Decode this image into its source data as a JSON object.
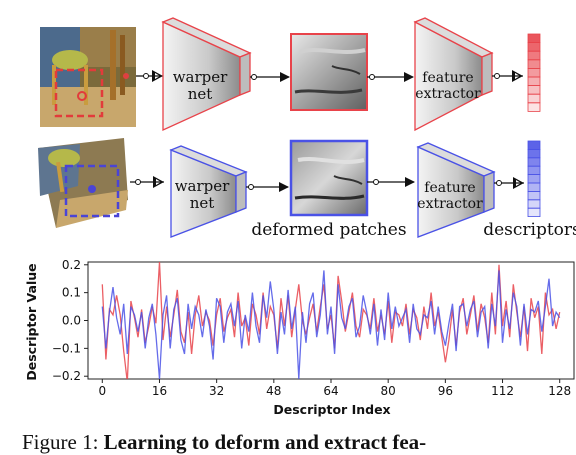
{
  "pipeline": {
    "warper_label_line1": "warper",
    "warper_label_line2": "net",
    "extractor_label_line1": "feature",
    "extractor_label_line2": "extractor",
    "deformed_patches_label": "deformed patches",
    "descriptors_label": "descriptors",
    "colors": {
      "red": "#e8434a",
      "blue": "#4a52e6"
    }
  },
  "chart_data": {
    "type": "line",
    "xlabel": "Descriptor Index",
    "ylabel": "Descriptor Value",
    "xlim": [
      -4,
      132
    ],
    "ylim": [
      -0.21,
      0.21
    ],
    "xticks": [
      0,
      16,
      32,
      48,
      64,
      80,
      96,
      112,
      128
    ],
    "yticks": [
      -0.2,
      -0.1,
      0.0,
      0.1,
      0.2
    ],
    "ytick_labels": [
      "−0.2",
      "−0.1",
      "0.0",
      "0.1",
      "0.2"
    ],
    "series": [
      {
        "color": "#e8434a",
        "values": [
          0.13,
          -0.14,
          0.04,
          0.02,
          0.09,
          0.02,
          -0.11,
          -0.22,
          0.07,
          0.01,
          -0.06,
          0.04,
          -0.08,
          -0.02,
          0.05,
          -0.01,
          0.21,
          -0.07,
          0.05,
          -0.06,
          0.02,
          0.11,
          -0.04,
          -0.08,
          0.03,
          -0.12,
          0.02,
          0.09,
          -0.02,
          0.03,
          0.0,
          -0.09,
          0.02,
          0.08,
          -0.04,
          0.01,
          0.04,
          -0.06,
          0.1,
          -0.02,
          0.01,
          -0.09,
          0.06,
          0.02,
          -0.05,
          0.1,
          -0.03,
          0.05,
          0.02,
          -0.1,
          0.08,
          -0.02,
          0.09,
          -0.06,
          0.04,
          0.13,
          0.0,
          -0.05,
          0.01,
          0.06,
          -0.04,
          0.05,
          0.13,
          -0.03,
          0.02,
          -0.1,
          0.16,
          0.07,
          -0.04,
          0.03,
          0.1,
          -0.02,
          -0.06,
          0.04,
          0.02,
          -0.03,
          0.08,
          -0.04,
          0.02,
          -0.05,
          0.07,
          -0.08,
          0.03,
          0.02,
          -0.02,
          0.06,
          -0.05,
          0.04,
          0.01,
          -0.07,
          0.05,
          -0.03,
          0.1,
          -0.02,
          0.03,
          -0.06,
          -0.15,
          -0.07,
          0.04,
          -0.09,
          0.03,
          0.08,
          -0.05,
          0.02,
          0.09,
          -0.04,
          0.06,
          0.01,
          -0.08,
          0.1,
          -0.05,
          0.2,
          -0.02,
          0.07,
          -0.06,
          0.13,
          0.03,
          -0.06,
          0.05,
          -0.11,
          0.08,
          0.01,
          0.05,
          -0.12,
          0.1,
          0.02,
          0.04,
          -0.03,
          0.03
        ]
      },
      {
        "color": "#4a52e6",
        "values": [
          0.05,
          -0.1,
          0.03,
          0.12,
          0.01,
          -0.05,
          0.06,
          -0.12,
          0.05,
          0.02,
          -0.04,
          0.03,
          -0.1,
          0.01,
          0.06,
          -0.05,
          -0.21,
          0.02,
          0.09,
          -0.1,
          0.04,
          0.08,
          -0.07,
          -0.12,
          0.06,
          -0.03,
          0.05,
          0.02,
          -0.06,
          0.04,
          -0.02,
          -0.14,
          0.08,
          0.05,
          -0.08,
          0.03,
          0.06,
          -0.02,
          0.07,
          -0.1,
          0.02,
          -0.04,
          0.1,
          -0.02,
          -0.08,
          0.09,
          0.01,
          0.14,
          0.04,
          -0.12,
          0.03,
          -0.05,
          0.11,
          -0.03,
          0.05,
          -0.21,
          0.03,
          -0.08,
          0.06,
          0.1,
          -0.06,
          0.02,
          0.18,
          -0.05,
          0.05,
          -0.12,
          0.13,
          0.01,
          -0.03,
          0.05,
          0.08,
          -0.06,
          -0.02,
          0.09,
          0.03,
          -0.05,
          0.06,
          -0.09,
          0.04,
          -0.07,
          0.1,
          -0.03,
          0.05,
          -0.02,
          0.01,
          0.04,
          -0.08,
          0.06,
          -0.03,
          -0.05,
          0.02,
          0.01,
          0.07,
          -0.05,
          0.05,
          -0.04,
          -0.09,
          -0.01,
          0.06,
          -0.11,
          0.05,
          0.06,
          -0.02,
          0.04,
          0.07,
          -0.06,
          0.03,
          0.05,
          -0.1,
          0.06,
          -0.02,
          0.18,
          -0.08,
          0.04,
          -0.03,
          0.1,
          0.05,
          -0.09,
          0.06,
          -0.05,
          0.04,
          0.03,
          0.07,
          -0.04,
          0.05,
          0.15,
          -0.02,
          0.03,
          0.01
        ]
      }
    ]
  },
  "caption": {
    "prefix": "Figure 1: ",
    "bold": "Learning to deform and extract fea-"
  }
}
